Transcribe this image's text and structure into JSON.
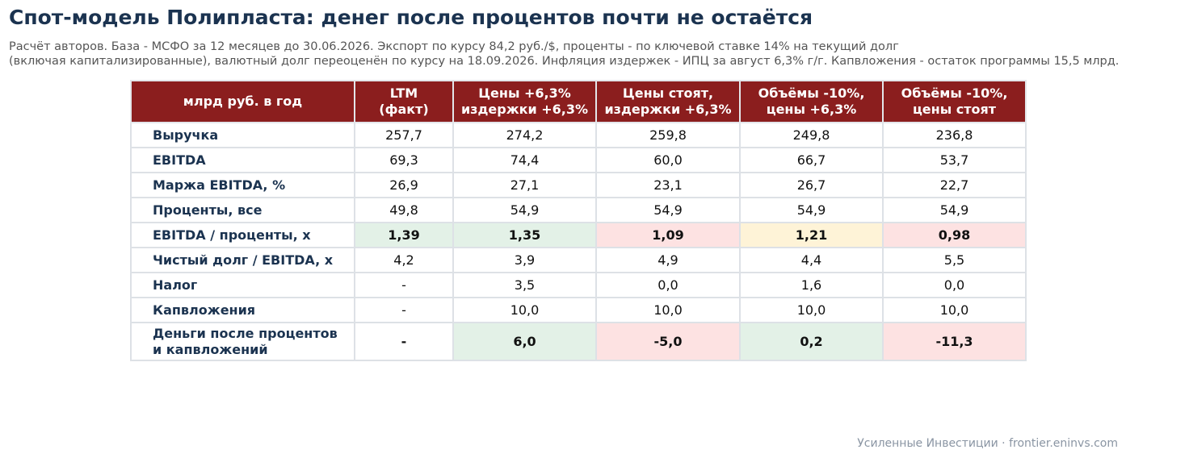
{
  "header": {
    "title": "Спот-модель Полипласта: денег после процентов почти не остаётся",
    "subtitle_lines": [
      "Расчёт авторов. База - МСФО за 12 месяцев до 30.06.2026. Экспорт по курсу 84,2 руб./$, проценты - по ключевой ставке 14% на текущий долг",
      "(включая капитализированные), валютный долг переоценён по курсу на 18.09.2026. Инфляция издержек - ИПЦ за август 6,3% г/г. Капвложения - остаток программы 15,5 млрд."
    ]
  },
  "table": {
    "columns": [
      "млрд руб. в год",
      "LTM\n(факт)",
      "Цены +6,3%\nиздержки +6,3%",
      "Цены стоят,\nиздержки +6,3%",
      "Объёмы -10%,\nцены +6,3%",
      "Объёмы -10%,\nцены стоят"
    ],
    "rows": [
      {
        "label": "Выручка",
        "cells": [
          "257,7",
          "274,2",
          "259,8",
          "249,8",
          "236,8"
        ]
      },
      {
        "label": "EBITDA",
        "cells": [
          "69,3",
          "74,4",
          "60,0",
          "66,7",
          "53,7"
        ]
      },
      {
        "label": "Маржа EBITDA, %",
        "cells": [
          "26,9",
          "27,1",
          "23,1",
          "26,7",
          "22,7"
        ]
      },
      {
        "label": "Проценты, все",
        "cells": [
          "49,8",
          "54,9",
          "54,9",
          "54,9",
          "54,9"
        ]
      },
      {
        "label": "EBITDA / проценты, x",
        "cells": [
          "1,39",
          "1,35",
          "1,09",
          "1,21",
          "0,98"
        ],
        "bold": true,
        "fills": [
          "#e3f1e7",
          "#e3f1e7",
          "#fde2e2",
          "#fef3d7",
          "#fde2e2"
        ]
      },
      {
        "label": "Чистый долг / EBITDA, x",
        "cells": [
          "4,2",
          "3,9",
          "4,9",
          "4,4",
          "5,5"
        ]
      },
      {
        "label": "Налог",
        "cells": [
          "-",
          "3,5",
          "0,0",
          "1,6",
          "0,0"
        ]
      },
      {
        "label": "Капвложения",
        "cells": [
          "-",
          "10,0",
          "10,0",
          "10,0",
          "10,0"
        ]
      },
      {
        "label": "Деньги после процентов\nи капвложений",
        "cells": [
          "-",
          "6,0",
          "-5,0",
          "0,2",
          "-11,3"
        ],
        "bold": true,
        "fills": [
          "#ffffff",
          "#e3f1e7",
          "#fde2e2",
          "#e3f1e7",
          "#fde2e2"
        ]
      }
    ]
  },
  "footer": "Усиленные Инвестиции · frontier.eninvs.com"
}
